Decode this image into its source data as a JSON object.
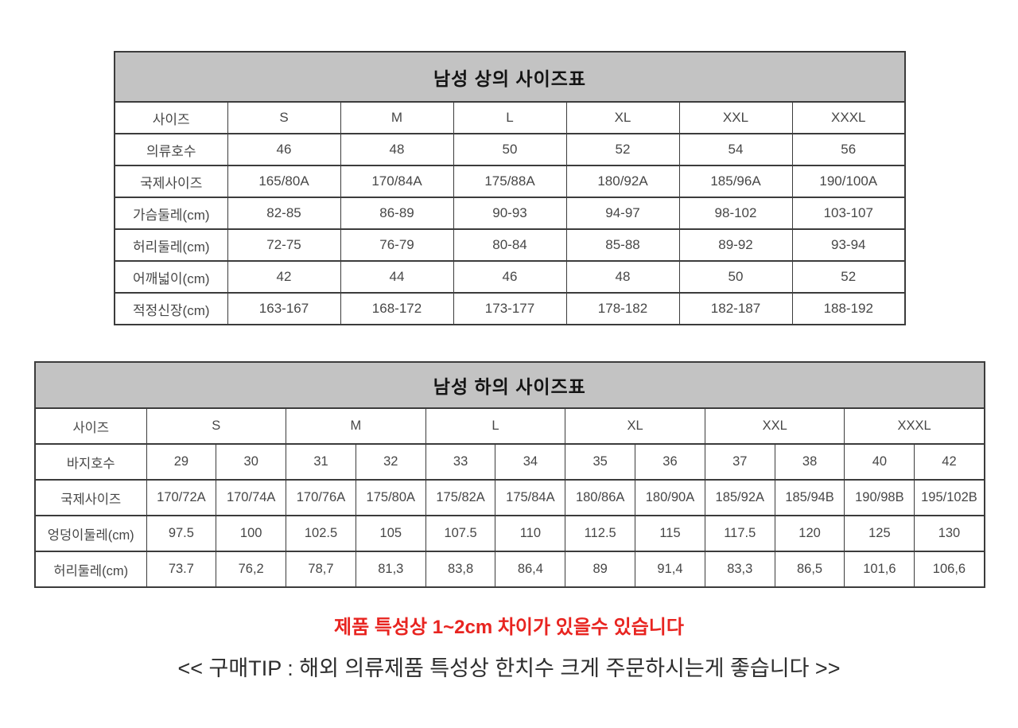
{
  "colors": {
    "header_bg": "#c3c3c3",
    "border": "#3c3c3c",
    "cell_text": "#474747",
    "warning_red": "#e82420",
    "tip_text": "#2d2d2d"
  },
  "top_table": {
    "title": "남성 상의 사이즈표",
    "rows": [
      {
        "label": "사이즈",
        "values": [
          "S",
          "M",
          "L",
          "XL",
          "XXL",
          "XXXL"
        ]
      },
      {
        "label": "의류호수",
        "values": [
          "46",
          "48",
          "50",
          "52",
          "54",
          "56"
        ]
      },
      {
        "label": "국제사이즈",
        "values": [
          "165/80A",
          "170/84A",
          "175/88A",
          "180/92A",
          "185/96A",
          "190/100A"
        ]
      },
      {
        "label": "가슴둘레(cm)",
        "values": [
          "82-85",
          "86-89",
          "90-93",
          "94-97",
          "98-102",
          "103-107"
        ]
      },
      {
        "label": "허리둘레(cm)",
        "values": [
          "72-75",
          "76-79",
          "80-84",
          "85-88",
          "89-92",
          "93-94"
        ]
      },
      {
        "label": "어깨넓이(cm)",
        "values": [
          "42",
          "44",
          "46",
          "48",
          "50",
          "52"
        ]
      },
      {
        "label": "적정신장(cm)",
        "values": [
          "163-167",
          "168-172",
          "173-177",
          "178-182",
          "182-187",
          "188-192"
        ]
      }
    ]
  },
  "bottom_table": {
    "title": "남성 하의 사이즈표",
    "size_row": {
      "label": "사이즈",
      "values": [
        "S",
        "M",
        "L",
        "XL",
        "XXL",
        "XXXL"
      ]
    },
    "rows": [
      {
        "label": "바지호수",
        "values": [
          "29",
          "30",
          "31",
          "32",
          "33",
          "34",
          "35",
          "36",
          "37",
          "38",
          "40",
          "42"
        ]
      },
      {
        "label": "국제사이즈",
        "values": [
          "170/72A",
          "170/74A",
          "170/76A",
          "175/80A",
          "175/82A",
          "175/84A",
          "180/86A",
          "180/90A",
          "185/92A",
          "185/94B",
          "190/98B",
          "195/102B"
        ]
      },
      {
        "label": "엉덩이둘레(cm)",
        "values": [
          "97.5",
          "100",
          "102.5",
          "105",
          "107.5",
          "110",
          "112.5",
          "115",
          "117.5",
          "120",
          "125",
          "130"
        ]
      },
      {
        "label": "허리둘레(cm)",
        "values": [
          "73.7",
          "76,2",
          "78,7",
          "81,3",
          "83,8",
          "86,4",
          "89",
          "91,4",
          "83,3",
          "86,5",
          "101,6",
          "106,6"
        ]
      }
    ]
  },
  "notes": {
    "warning": "제품 특성상 1~2cm 차이가 있을수 있습니다",
    "tip": "<< 구매TIP : 해외 의류제품 특성상 한치수 크게 주문하시는게 좋습니다 >>"
  }
}
